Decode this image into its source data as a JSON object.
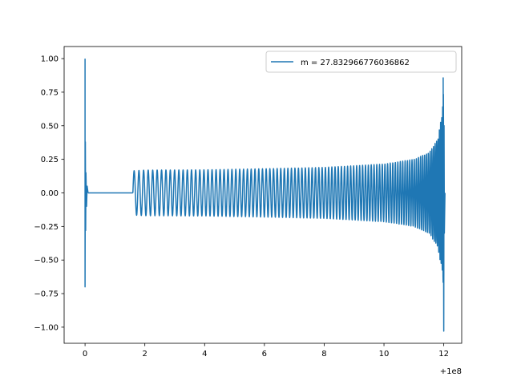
{
  "chart_data": {
    "type": "line",
    "title": "",
    "xlabel": "",
    "ylabel": "",
    "x_offset_label": "+1e8",
    "xlim": [
      -0.7,
      12.6
    ],
    "ylim": [
      -1.12,
      1.09
    ],
    "x_ticks": [
      {
        "value": 0,
        "label": "0"
      },
      {
        "value": 2,
        "label": "2"
      },
      {
        "value": 4,
        "label": "4"
      },
      {
        "value": 6,
        "label": "6"
      },
      {
        "value": 8,
        "label": "8"
      },
      {
        "value": 10,
        "label": "10"
      },
      {
        "value": 12,
        "label": "12"
      }
    ],
    "y_ticks": [
      {
        "value": 1.0,
        "label": "1.00"
      },
      {
        "value": 0.75,
        "label": "0.75"
      },
      {
        "value": 0.5,
        "label": "0.50"
      },
      {
        "value": 0.25,
        "label": "0.25"
      },
      {
        "value": 0.0,
        "label": "0.00"
      },
      {
        "value": -0.25,
        "label": "−0.25"
      },
      {
        "value": -0.5,
        "label": "−0.50"
      },
      {
        "value": -0.75,
        "label": "−0.75"
      },
      {
        "value": -1.0,
        "label": "−1.00"
      }
    ],
    "grid": false,
    "legend": {
      "placement": "upper right"
    },
    "series": [
      {
        "name": "m = 27.832966776036862",
        "color": "#1f77b4",
        "segments": [
          {
            "kind": "burst",
            "x": [
              0.0,
              0.0,
              0.01,
              0.02,
              0.03,
              0.05,
              0.07,
              0.1
            ],
            "y": [
              1.0,
              -0.7,
              0.38,
              -0.28,
              0.15,
              -0.1,
              0.05,
              0.0
            ]
          },
          {
            "kind": "flat",
            "x": [
              0.1,
              1.6
            ],
            "y": [
              0.0,
              0.0
            ]
          },
          {
            "kind": "oscillation",
            "x_start": 1.6,
            "x_end": 12.0,
            "cycles": 100,
            "envelope_x": [
              1.6,
              2.0,
              4.0,
              6.0,
              8.0,
              10.0,
              11.0,
              11.5,
              11.8,
              11.95,
              12.0
            ],
            "envelope_y": [
              0.165,
              0.17,
              0.172,
              0.18,
              0.19,
              0.215,
              0.25,
              0.3,
              0.4,
              0.6,
              0.86
            ]
          },
          {
            "kind": "merger",
            "x": [
              11.98,
              12.0,
              12.01,
              12.02,
              12.04
            ],
            "y": [
              0.86,
              -1.03,
              0.5,
              -0.3,
              0.0
            ]
          }
        ]
      }
    ]
  }
}
